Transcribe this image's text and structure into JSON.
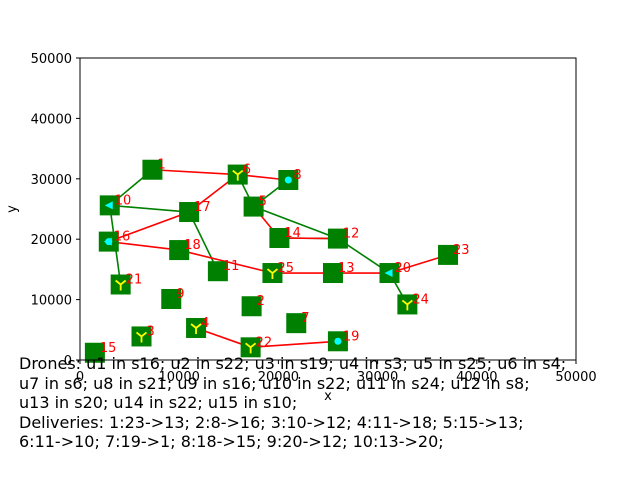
{
  "chart_data": {
    "type": "scatter",
    "xlabel": "x",
    "ylabel": "y",
    "xlim": [
      0,
      50000
    ],
    "ylim": [
      0,
      50000
    ],
    "xticks": [
      0,
      10000,
      20000,
      30000,
      40000,
      50000
    ],
    "yticks": [
      0,
      10000,
      20000,
      30000,
      40000,
      50000
    ],
    "xtick_labels": [
      "0",
      "10000",
      "20000",
      "30000",
      "40000",
      "50000"
    ],
    "ytick_labels": [
      "0",
      "10000",
      "20000",
      "30000",
      "40000",
      "50000"
    ],
    "grid": false,
    "stations": [
      {
        "id": "1",
        "x": 7300,
        "y": 31500
      },
      {
        "id": "2",
        "x": 17300,
        "y": 8900
      },
      {
        "id": "3",
        "x": 6200,
        "y": 3900
      },
      {
        "id": "4",
        "x": 11700,
        "y": 5300
      },
      {
        "id": "5",
        "x": 17500,
        "y": 25400
      },
      {
        "id": "6",
        "x": 15900,
        "y": 30700
      },
      {
        "id": "7",
        "x": 21800,
        "y": 6100
      },
      {
        "id": "8",
        "x": 21000,
        "y": 29800
      },
      {
        "id": "9",
        "x": 9200,
        "y": 10100
      },
      {
        "id": "10",
        "x": 3000,
        "y": 25600
      },
      {
        "id": "11",
        "x": 13900,
        "y": 14700
      },
      {
        "id": "12",
        "x": 26000,
        "y": 20100
      },
      {
        "id": "13",
        "x": 25500,
        "y": 14400
      },
      {
        "id": "14",
        "x": 20100,
        "y": 20200
      },
      {
        "id": "15",
        "x": 1500,
        "y": 1200
      },
      {
        "id": "16",
        "x": 2900,
        "y": 19600
      },
      {
        "id": "17",
        "x": 11000,
        "y": 24500
      },
      {
        "id": "18",
        "x": 10000,
        "y": 18200
      },
      {
        "id": "19",
        "x": 26000,
        "y": 3100
      },
      {
        "id": "20",
        "x": 31200,
        "y": 14400
      },
      {
        "id": "21",
        "x": 4100,
        "y": 12500
      },
      {
        "id": "22",
        "x": 17200,
        "y": 2100
      },
      {
        "id": "23",
        "x": 37100,
        "y": 17400
      },
      {
        "id": "24",
        "x": 33000,
        "y": 9200
      },
      {
        "id": "25",
        "x": 19400,
        "y": 14400
      }
    ],
    "drones": [
      {
        "name": "u1",
        "station": "16",
        "marker": "dot"
      },
      {
        "name": "u2",
        "station": "22",
        "marker": "tri"
      },
      {
        "name": "u3",
        "station": "19",
        "marker": "dot"
      },
      {
        "name": "u4",
        "station": "3",
        "marker": "tri"
      },
      {
        "name": "u5",
        "station": "25",
        "marker": "tri"
      },
      {
        "name": "u6",
        "station": "4",
        "marker": "tri"
      },
      {
        "name": "u7",
        "station": "6",
        "marker": "tri"
      },
      {
        "name": "u8",
        "station": "21",
        "marker": "tri"
      },
      {
        "name": "u9",
        "station": "16",
        "marker": "tri-left"
      },
      {
        "name": "u10",
        "station": "22",
        "marker": "tri"
      },
      {
        "name": "u11",
        "station": "24",
        "marker": "tri"
      },
      {
        "name": "u12",
        "station": "8",
        "marker": "dot"
      },
      {
        "name": "u13",
        "station": "20",
        "marker": "tri-left"
      },
      {
        "name": "u14",
        "station": "22",
        "marker": "tri"
      },
      {
        "name": "u15",
        "station": "10",
        "marker": "tri-left"
      }
    ],
    "edges_red": [
      [
        "1",
        "6"
      ],
      [
        "6",
        "8"
      ],
      [
        "6",
        "17"
      ],
      [
        "17",
        "16"
      ],
      [
        "16",
        "18"
      ],
      [
        "18",
        "25"
      ],
      [
        "25",
        "13"
      ],
      [
        "13",
        "20"
      ],
      [
        "20",
        "23"
      ],
      [
        "4",
        "22"
      ],
      [
        "22",
        "19"
      ],
      [
        "5",
        "14"
      ],
      [
        "14",
        "12"
      ]
    ],
    "edges_green": [
      [
        "1",
        "10"
      ],
      [
        "10",
        "17"
      ],
      [
        "17",
        "11"
      ],
      [
        "10",
        "21"
      ],
      [
        "6",
        "5"
      ],
      [
        "5",
        "8"
      ],
      [
        "5",
        "12"
      ],
      [
        "14",
        "12"
      ],
      [
        "12",
        "20"
      ],
      [
        "20",
        "24"
      ]
    ],
    "colors": {
      "station_fill": "#008000",
      "station_label": "#ff0000",
      "edge_red": "#ff0000",
      "edge_green": "#008000",
      "drone_dot": "#00ffff",
      "drone_tri": "#ffff00"
    }
  },
  "caption_lines": [
    "Drones: u1 in s16; u2 in s22; u3 in s19; u4 in s3; u5 in s25; u6 in s4;",
    "u7 in s6; u8 in s21; u9 in s16; u10 in s22; u11 in s24; u12 in s8;",
    "u13 in s20; u14 in s22; u15 in s10;",
    "Deliveries: 1:23->13; 2:8->16; 3:10->12; 4:11->18; 5:15->13;",
    "6:11->10; 7:19->1; 8:18->15; 9:20->12; 10:13->20;"
  ]
}
